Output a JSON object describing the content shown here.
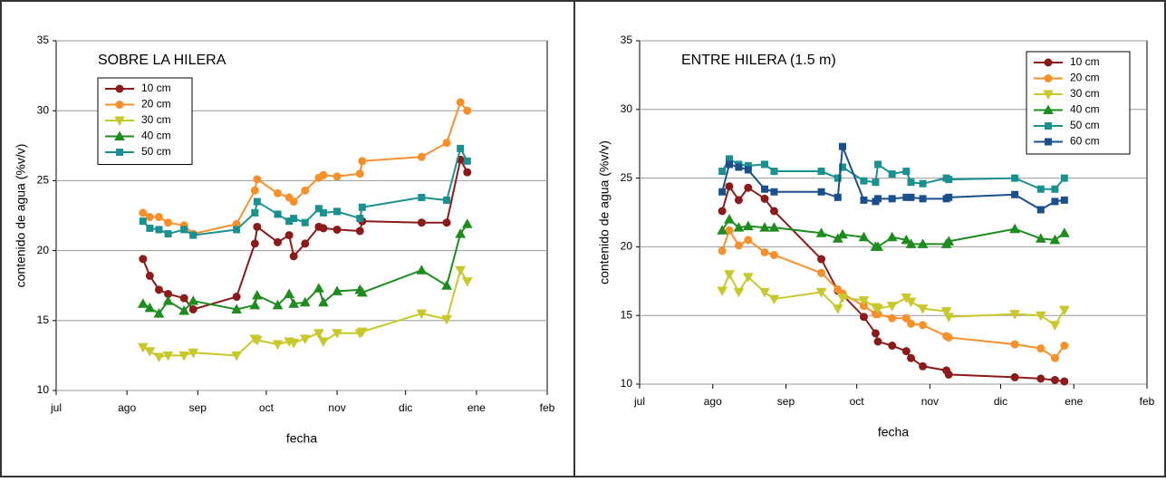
{
  "chart_data": [
    {
      "type": "line",
      "title": "SOBRE LA HILERA",
      "x_label": "fecha",
      "y_label": "contenido de agua (%v/v)",
      "xlim": [
        0,
        215
      ],
      "xticks": [
        {
          "value": 0,
          "label": "jul"
        },
        {
          "value": 31,
          "label": "ago"
        },
        {
          "value": 62,
          "label": "sep"
        },
        {
          "value": 92,
          "label": "oct"
        },
        {
          "value": 123,
          "label": "nov"
        },
        {
          "value": 153,
          "label": "dic"
        },
        {
          "value": 184,
          "label": "ene"
        },
        {
          "value": 215,
          "label": "feb"
        }
      ],
      "ylim": [
        10,
        35
      ],
      "yticks": [
        10,
        15,
        20,
        25,
        30,
        35
      ],
      "grid": true,
      "legend": "upper left",
      "x": [
        38,
        41,
        45,
        49,
        56,
        60,
        79,
        87,
        88,
        97,
        102,
        104,
        109,
        115,
        117,
        123,
        133,
        134,
        160,
        171,
        177,
        180
      ],
      "series": [
        {
          "name": "10 cm",
          "color": "#8b1a1a",
          "marker": "circle",
          "values": [
            19.4,
            18.2,
            17.2,
            16.9,
            16.6,
            15.8,
            16.7,
            20.5,
            21.7,
            20.6,
            21.1,
            19.6,
            20.5,
            21.7,
            21.6,
            21.5,
            21.4,
            22.1,
            22.0,
            22.0,
            26.5,
            25.6
          ]
        },
        {
          "name": "20 cm",
          "color": "#f7902a",
          "marker": "circle",
          "values": [
            22.7,
            22.4,
            22.4,
            22.0,
            21.8,
            21.2,
            21.9,
            24.3,
            25.1,
            24.1,
            23.8,
            23.5,
            24.3,
            25.2,
            25.4,
            25.3,
            25.5,
            26.4,
            26.7,
            27.7,
            30.6,
            30.0
          ]
        },
        {
          "name": "30 cm",
          "color": "#c8c82a",
          "marker": "triangle-down",
          "values": [
            13.1,
            12.8,
            12.4,
            12.5,
            12.5,
            12.7,
            12.5,
            13.7,
            13.6,
            13.3,
            13.5,
            13.4,
            13.7,
            14.1,
            13.5,
            14.1,
            14.1,
            14.2,
            15.5,
            15.1,
            18.6,
            17.8
          ]
        },
        {
          "name": "40 cm",
          "color": "#1e8c1e",
          "marker": "triangle-up",
          "values": [
            16.2,
            15.9,
            15.5,
            16.4,
            15.7,
            16.4,
            15.8,
            16.1,
            16.8,
            16.1,
            16.9,
            16.2,
            16.3,
            17.3,
            16.3,
            17.1,
            17.2,
            17.0,
            18.6,
            17.5,
            21.2,
            21.9
          ]
        },
        {
          "name": "50 cm",
          "color": "#1a9090",
          "marker": "square",
          "values": [
            22.1,
            21.6,
            21.5,
            21.2,
            21.5,
            21.1,
            21.5,
            22.7,
            23.5,
            22.6,
            22.1,
            22.3,
            22.0,
            23.0,
            22.7,
            22.8,
            22.3,
            23.1,
            23.8,
            23.6,
            27.3,
            26.4
          ]
        }
      ]
    },
    {
      "type": "line",
      "title": "ENTRE HILERA (1.5 m)",
      "x_label": "fecha",
      "y_label": "contenido de agua (%v/v)",
      "xlim": [
        0,
        215
      ],
      "xticks": [
        {
          "value": 0,
          "label": "jul"
        },
        {
          "value": 31,
          "label": "ago"
        },
        {
          "value": 62,
          "label": "sep"
        },
        {
          "value": 92,
          "label": "oct"
        },
        {
          "value": 123,
          "label": "nov"
        },
        {
          "value": 153,
          "label": "dic"
        },
        {
          "value": 184,
          "label": "ene"
        },
        {
          "value": 215,
          "label": "feb"
        }
      ],
      "ylim": [
        10,
        35
      ],
      "yticks": [
        10,
        15,
        20,
        25,
        30,
        35
      ],
      "grid": true,
      "legend": "upper right",
      "x": [
        35,
        38,
        42,
        46,
        53,
        57,
        77,
        84,
        86,
        95,
        100,
        101,
        107,
        113,
        115,
        120,
        130,
        131,
        159,
        170,
        176,
        180
      ],
      "series": [
        {
          "name": "10 cm",
          "color": "#8b1a1a",
          "marker": "circle",
          "values": [
            22.6,
            24.4,
            23.4,
            24.3,
            23.5,
            22.6,
            19.1,
            16.8,
            16.5,
            14.9,
            13.7,
            13.1,
            12.8,
            12.4,
            11.9,
            11.3,
            11.0,
            10.7,
            10.5,
            10.4,
            10.3,
            10.2
          ]
        },
        {
          "name": "20 cm",
          "color": "#f7902a",
          "marker": "circle",
          "values": [
            19.7,
            21.2,
            20.1,
            20.5,
            19.6,
            19.4,
            18.1,
            16.9,
            16.6,
            15.7,
            15.1,
            15.1,
            14.8,
            14.8,
            14.4,
            14.3,
            13.5,
            13.4,
            12.9,
            12.6,
            11.9,
            12.8
          ]
        },
        {
          "name": "30 cm",
          "color": "#c8c82a",
          "marker": "triangle-down",
          "values": [
            16.8,
            18.0,
            16.7,
            17.8,
            16.7,
            16.2,
            16.7,
            15.5,
            16.3,
            16.1,
            15.6,
            15.5,
            15.7,
            16.3,
            16.0,
            15.5,
            15.3,
            14.9,
            15.1,
            15.0,
            14.3,
            15.4
          ]
        },
        {
          "name": "40 cm",
          "color": "#1e8c1e",
          "marker": "triangle-up",
          "values": [
            21.2,
            22.0,
            21.4,
            21.5,
            21.4,
            21.4,
            21.0,
            20.6,
            20.9,
            20.7,
            20.0,
            20.0,
            20.7,
            20.5,
            20.2,
            20.2,
            20.2,
            20.4,
            21.3,
            20.6,
            20.5,
            21.0
          ]
        },
        {
          "name": "50 cm",
          "color": "#1a9090",
          "marker": "square",
          "values": [
            25.5,
            26.4,
            26.0,
            25.9,
            26.0,
            25.5,
            25.5,
            25.0,
            25.8,
            24.8,
            24.7,
            26.0,
            25.3,
            25.5,
            24.7,
            24.6,
            25.0,
            24.9,
            25.0,
            24.2,
            24.2,
            25.0
          ]
        },
        {
          "name": "60 cm",
          "color": "#1a4f8c",
          "marker": "square",
          "values": [
            24.0,
            26.0,
            25.8,
            25.6,
            24.2,
            24.0,
            24.0,
            23.6,
            27.3,
            23.4,
            23.3,
            23.5,
            23.5,
            23.6,
            23.6,
            23.5,
            23.5,
            23.6,
            23.8,
            22.7,
            23.3,
            23.4
          ]
        }
      ]
    }
  ]
}
